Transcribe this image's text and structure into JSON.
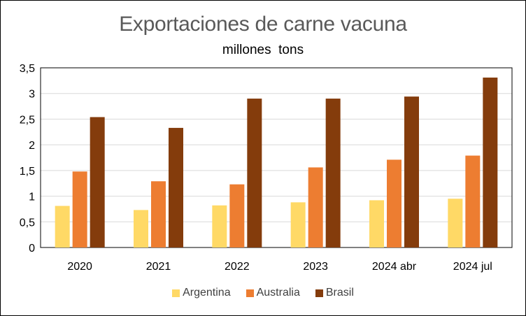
{
  "chart_data": {
    "type": "bar",
    "title": "Exportaciones de carne vacuna",
    "subtitle": "millones  tons",
    "categories": [
      "2020",
      "2021",
      "2022",
      "2023",
      "2024 abr",
      "2024 jul"
    ],
    "series": [
      {
        "name": "Argentina",
        "color": "#FFD966",
        "values": [
          0.81,
          0.73,
          0.82,
          0.88,
          0.92,
          0.95
        ]
      },
      {
        "name": "Australia",
        "color": "#ED7D31",
        "values": [
          1.48,
          1.29,
          1.23,
          1.56,
          1.71,
          1.79
        ]
      },
      {
        "name": "Brasil",
        "color": "#843C0C",
        "values": [
          2.54,
          2.33,
          2.9,
          2.9,
          2.94,
          3.31
        ]
      }
    ],
    "ylim": [
      0,
      3.5
    ],
    "yticks": [
      "0",
      "0,5",
      "1",
      "1,5",
      "2",
      "2,5",
      "3",
      "3,5"
    ],
    "ytick_values": [
      0,
      0.5,
      1,
      1.5,
      2,
      2.5,
      3,
      3.5
    ],
    "grid": true,
    "legend_position": "bottom"
  }
}
